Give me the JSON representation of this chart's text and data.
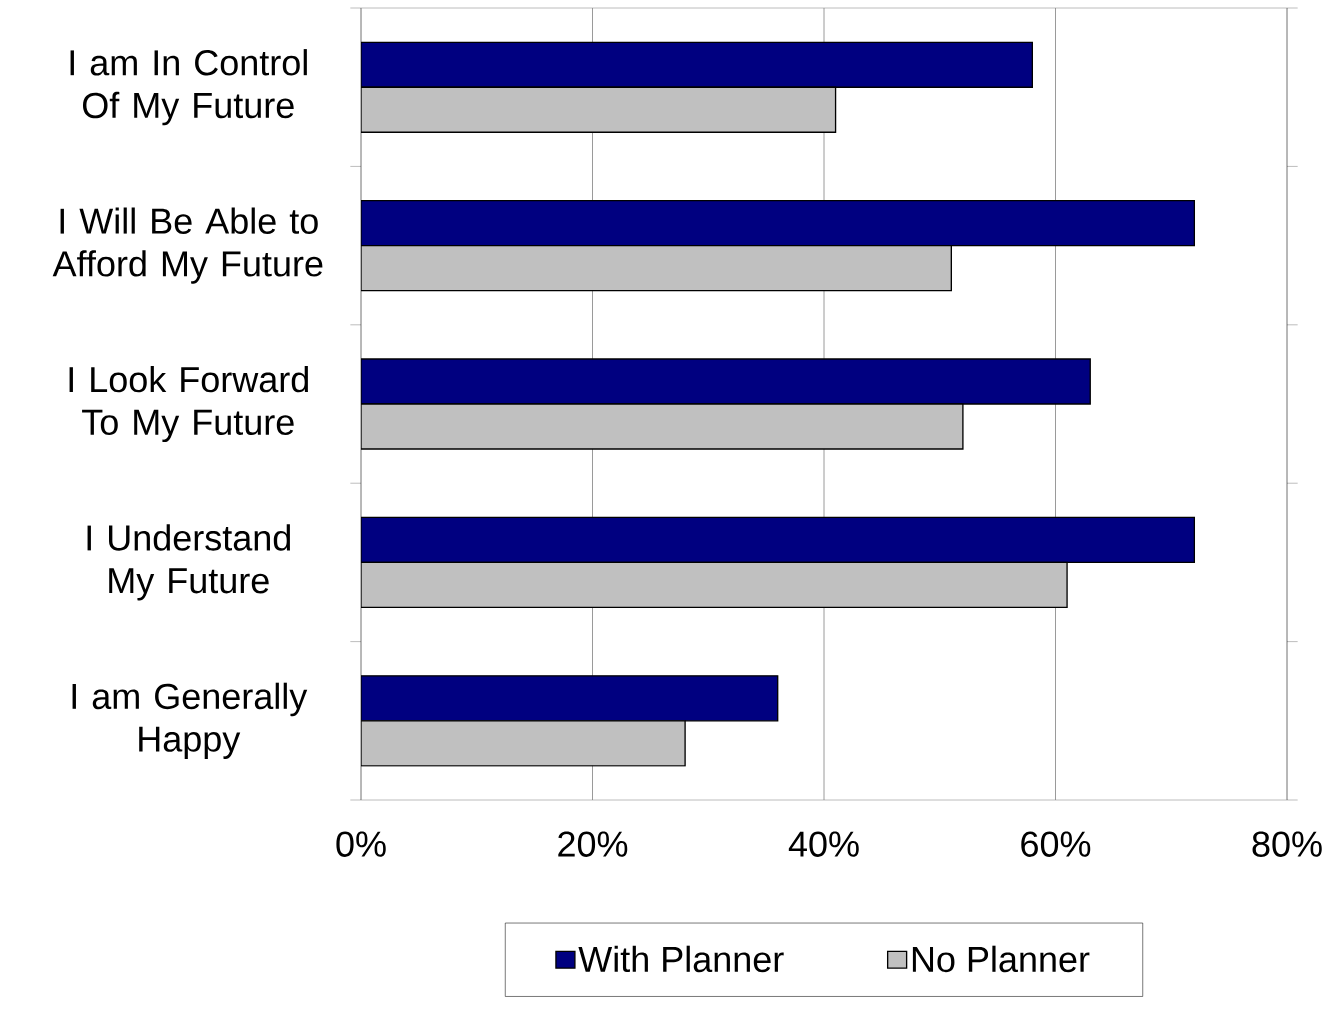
{
  "chart_data": {
    "type": "bar",
    "orientation": "horizontal",
    "categories": [
      "I am In Control Of My Future",
      "I Will Be Able to Afford My Future",
      "I Look Forward To My Future",
      "I Understand My Future",
      "I am Generally Happy"
    ],
    "series": [
      {
        "name": "With Planner",
        "color": "#000080",
        "values": [
          58,
          72,
          63,
          72,
          36
        ]
      },
      {
        "name": "No Planner",
        "color": "#c0c0c0",
        "values": [
          41,
          51,
          52,
          61,
          28
        ]
      }
    ],
    "xlim": [
      0,
      80
    ],
    "xticks": [
      {
        "value": 0,
        "label": "0%"
      },
      {
        "value": 20,
        "label": "20%"
      },
      {
        "value": 40,
        "label": "40%"
      },
      {
        "value": 60,
        "label": "60%"
      },
      {
        "value": 80,
        "label": "80%"
      }
    ],
    "grid": "x",
    "legend": "bottom"
  }
}
